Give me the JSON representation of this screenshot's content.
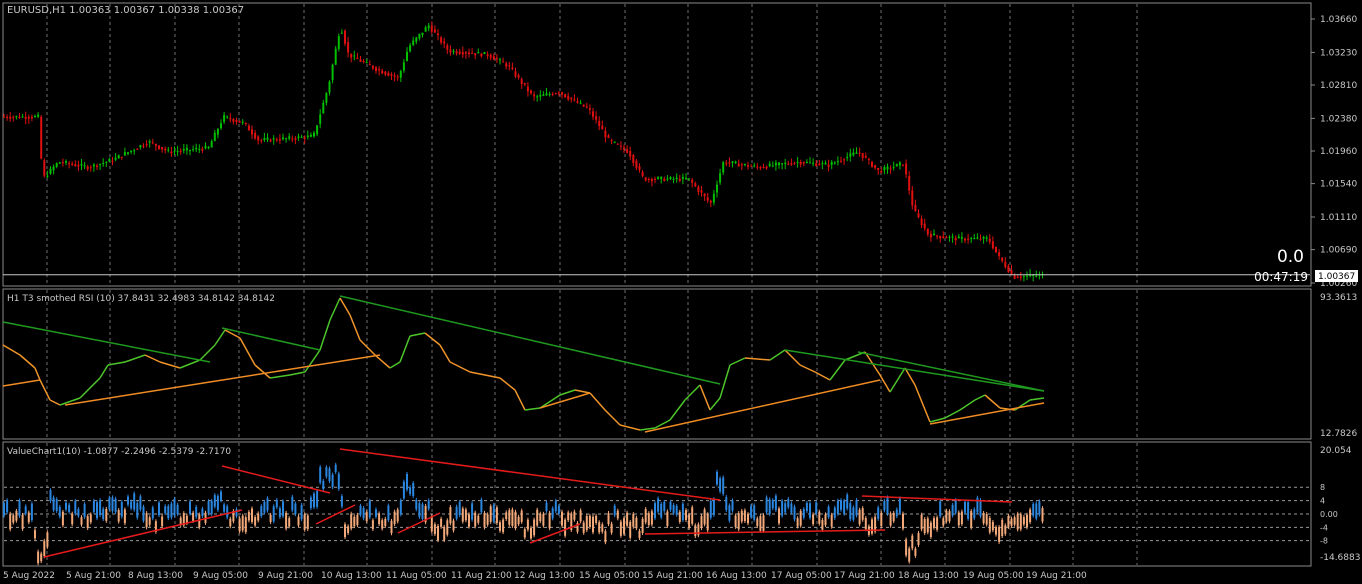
{
  "main_panel": {
    "header": "EURUSD,H1  1.00363 1.00367 1.00338 1.00367",
    "price_labels": [
      "1.03660",
      "1.03230",
      "1.02810",
      "1.02380",
      "1.01960",
      "1.01540",
      "1.01110",
      "1.00690",
      "1.00260"
    ],
    "price_values": [
      1.0366,
      1.0323,
      1.0281,
      1.0238,
      1.0196,
      1.0154,
      1.0111,
      1.0069,
      1.0026
    ],
    "current_price_label": "1.00367",
    "current_price": 1.00367,
    "big_value": "0.0",
    "countdown": "00:47:19"
  },
  "rsi_panel": {
    "header": "H1 T3 smothed RSI (10) 37.8431 32.4983 34.8142 34.8142",
    "max_label": "93.3613",
    "min_label": "12.7826"
  },
  "vc_panel": {
    "header": "ValueChart1(10) -1.0877 -2.2496 -2.5379 -2.7170",
    "max_label": "20.054",
    "min_label": "-14.6883",
    "level_labels": [
      "8",
      "4",
      "0.00",
      "-4",
      "-8"
    ],
    "level_values": [
      8,
      4,
      0,
      -4,
      -8
    ]
  },
  "time_axis": [
    "5 Aug 2022",
    "5 Aug 21:00",
    "8 Aug 13:00",
    "9 Aug 05:00",
    "9 Aug 21:00",
    "10 Aug 13:00",
    "11 Aug 05:00",
    "11 Aug 21:00",
    "12 Aug 13:00",
    "15 Aug 05:00",
    "15 Aug 21:00",
    "16 Aug 13:00",
    "17 Aug 05:00",
    "17 Aug 21:00",
    "18 Aug 13:00",
    "19 Aug 05:00",
    "19 Aug 21:00"
  ],
  "colors": {
    "background": "#000000",
    "bull_candle": "#00c000",
    "bear_candle": "#e01010",
    "grid": "#6e6e6e",
    "rsi_up": "#4cc52a",
    "rsi_down": "#f0952a",
    "trend_green": "#1f9a1f",
    "trend_orange": "#f08c24",
    "trend_red": "#e51b1b",
    "vc_up": "#2b86e0",
    "vc_down": "#f4a97a"
  }
}
